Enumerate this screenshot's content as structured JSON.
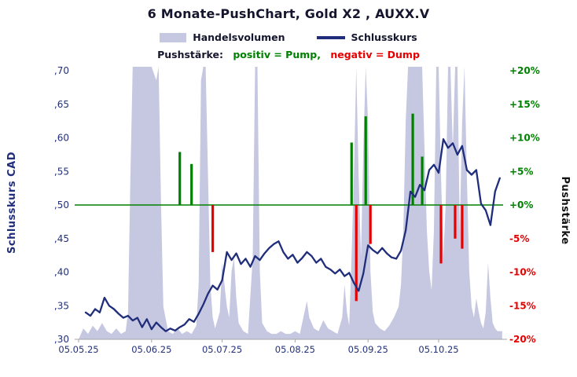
{
  "title": "6 Monate-PushChart,  Gold X2 , AUXX.V",
  "legend": {
    "volume": "Handelsvolumen",
    "price": "Schlusskurs",
    "push_label": "Pushstärke:",
    "pump_text": "positiv = Pump,",
    "dump_text": "negativ = Dump"
  },
  "axes": {
    "left_title": "Schlusskurs CAD",
    "right_title": "Pushstärke",
    "left_ticks": [
      ",70",
      ",65",
      ",60",
      ",55",
      ",50",
      ",45",
      ",40",
      ",35",
      ",30"
    ],
    "right_ticks": [
      "+20%",
      "+15%",
      "+10%",
      "+5%",
      "+0%",
      "-5%",
      "-10%",
      "-15%",
      "-20%"
    ],
    "x_ticks": [
      {
        "label": "05.05.25",
        "day": 0
      },
      {
        "label": "05.06.25",
        "day": 31
      },
      {
        "label": "05.07.25",
        "day": 61
      },
      {
        "label": "05.08.25",
        "day": 92
      },
      {
        "label": "05.09.25",
        "day": 123
      },
      {
        "label": "05.10.25",
        "day": 153
      }
    ],
    "x_range_days": [
      0,
      181
    ]
  },
  "colors": {
    "volume": "#c6c7e1",
    "price": "#1f2d7b",
    "pump": "#008000",
    "dump": "#e60000",
    "axis_text": "#22307a",
    "title_text": "#15152e",
    "axis_line": "#a6a6a6"
  },
  "chart_data": [
    {
      "type": "area",
      "name": "Handelsvolumen",
      "note": "trading volume, relative scale 0-100 (100 = clipped at plot top), x = days since 05.05.25",
      "x": [
        0,
        2,
        4,
        6,
        8,
        10,
        12,
        14,
        16,
        18,
        20,
        21,
        22,
        23,
        25,
        27,
        29,
        31,
        33,
        34,
        35,
        36,
        38,
        40,
        42,
        44,
        46,
        48,
        50,
        51,
        52,
        53,
        54,
        55,
        56,
        57,
        58,
        60,
        61,
        62,
        63,
        64,
        65,
        66,
        67,
        68,
        70,
        72,
        74,
        75,
        76,
        77,
        78,
        80,
        82,
        84,
        86,
        88,
        90,
        92,
        94,
        96,
        97,
        98,
        100,
        102,
        104,
        106,
        108,
        110,
        112,
        113,
        114,
        115,
        116,
        117,
        118,
        119,
        120,
        121,
        122,
        123,
        124,
        125,
        126,
        128,
        130,
        132,
        134,
        136,
        137,
        138,
        139,
        140,
        142,
        144,
        146,
        147,
        148,
        149,
        150,
        151,
        152,
        153,
        154,
        155,
        156,
        157,
        158,
        159,
        160,
        161,
        162,
        163,
        164,
        165,
        166,
        167,
        168,
        169,
        170,
        171,
        172,
        173,
        174,
        175,
        176,
        177,
        178,
        180
      ],
      "values": [
        0,
        4,
        2,
        5,
        3,
        6,
        3,
        2,
        4,
        2,
        3,
        10,
        60,
        100,
        100,
        100,
        100,
        100,
        95,
        100,
        50,
        12,
        3,
        2,
        4,
        2,
        3,
        2,
        5,
        20,
        95,
        100,
        100,
        60,
        20,
        8,
        4,
        10,
        28,
        20,
        12,
        8,
        25,
        30,
        15,
        6,
        3,
        2,
        30,
        100,
        100,
        25,
        6,
        3,
        2,
        2,
        3,
        2,
        2,
        3,
        2,
        10,
        14,
        8,
        4,
        3,
        7,
        4,
        3,
        2,
        8,
        20,
        10,
        5,
        30,
        60,
        100,
        60,
        30,
        70,
        100,
        80,
        25,
        10,
        6,
        4,
        3,
        5,
        8,
        12,
        20,
        40,
        80,
        100,
        100,
        100,
        100,
        70,
        40,
        25,
        18,
        40,
        100,
        100,
        60,
        30,
        50,
        100,
        100,
        70,
        100,
        100,
        40,
        80,
        100,
        60,
        25,
        12,
        8,
        15,
        10,
        6,
        4,
        10,
        28,
        15,
        6,
        4,
        3,
        3
      ],
      "ylim": [
        0,
        100
      ]
    },
    {
      "type": "line",
      "name": "Schlusskurs",
      "ylabel": "Schlusskurs CAD",
      "x": [
        3,
        5,
        7,
        9,
        11,
        13,
        15,
        17,
        19,
        21,
        23,
        25,
        27,
        29,
        31,
        33,
        35,
        37,
        39,
        41,
        43,
        45,
        47,
        49,
        51,
        53,
        55,
        57,
        59,
        61,
        63,
        65,
        67,
        69,
        71,
        73,
        75,
        77,
        79,
        81,
        83,
        85,
        87,
        89,
        91,
        93,
        95,
        97,
        99,
        101,
        103,
        105,
        107,
        109,
        111,
        113,
        115,
        117,
        119,
        121,
        123,
        125,
        127,
        129,
        131,
        133,
        135,
        137,
        139,
        141,
        143,
        145,
        147,
        149,
        151,
        153,
        155,
        157,
        159,
        161,
        163,
        165,
        167,
        169,
        171,
        173,
        175,
        177,
        179
      ],
      "values": [
        0.34,
        0.335,
        0.345,
        0.34,
        0.362,
        0.35,
        0.345,
        0.338,
        0.332,
        0.335,
        0.328,
        0.332,
        0.318,
        0.33,
        0.315,
        0.325,
        0.318,
        0.312,
        0.316,
        0.313,
        0.318,
        0.322,
        0.33,
        0.326,
        0.338,
        0.352,
        0.368,
        0.38,
        0.374,
        0.388,
        0.43,
        0.418,
        0.428,
        0.412,
        0.42,
        0.408,
        0.424,
        0.418,
        0.428,
        0.436,
        0.442,
        0.446,
        0.43,
        0.42,
        0.426,
        0.414,
        0.421,
        0.43,
        0.424,
        0.414,
        0.42,
        0.408,
        0.404,
        0.398,
        0.404,
        0.394,
        0.399,
        0.384,
        0.372,
        0.398,
        0.44,
        0.433,
        0.428,
        0.436,
        0.428,
        0.422,
        0.42,
        0.432,
        0.462,
        0.52,
        0.512,
        0.53,
        0.522,
        0.552,
        0.56,
        0.548,
        0.598,
        0.585,
        0.592,
        0.575,
        0.588,
        0.552,
        0.545,
        0.552,
        0.502,
        0.492,
        0.47,
        0.52,
        0.54
      ],
      "ylim": [
        0.3,
        0.7
      ]
    },
    {
      "type": "bar",
      "name": "Pushstärke",
      "ylabel": "Pushstärke",
      "ylim": [
        -20,
        20
      ],
      "zero_baseline_price": 0.5,
      "series": [
        {
          "name": "Pump",
          "color": "#008000",
          "points": [
            {
              "x": 43,
              "value": 7.9
            },
            {
              "x": 48,
              "value": 6.1
            },
            {
              "x": 116,
              "value": 9.3
            },
            {
              "x": 122,
              "value": 13.2
            },
            {
              "x": 142,
              "value": 13.6
            },
            {
              "x": 146,
              "value": 7.2
            }
          ]
        },
        {
          "name": "Dump",
          "color": "#e60000",
          "points": [
            {
              "x": 57,
              "value": -7.0
            },
            {
              "x": 118,
              "value": -14.3
            },
            {
              "x": 124,
              "value": -5.8
            },
            {
              "x": 154,
              "value": -8.7
            },
            {
              "x": 160,
              "value": -5.0
            },
            {
              "x": 163,
              "value": -6.5
            }
          ]
        }
      ]
    }
  ]
}
